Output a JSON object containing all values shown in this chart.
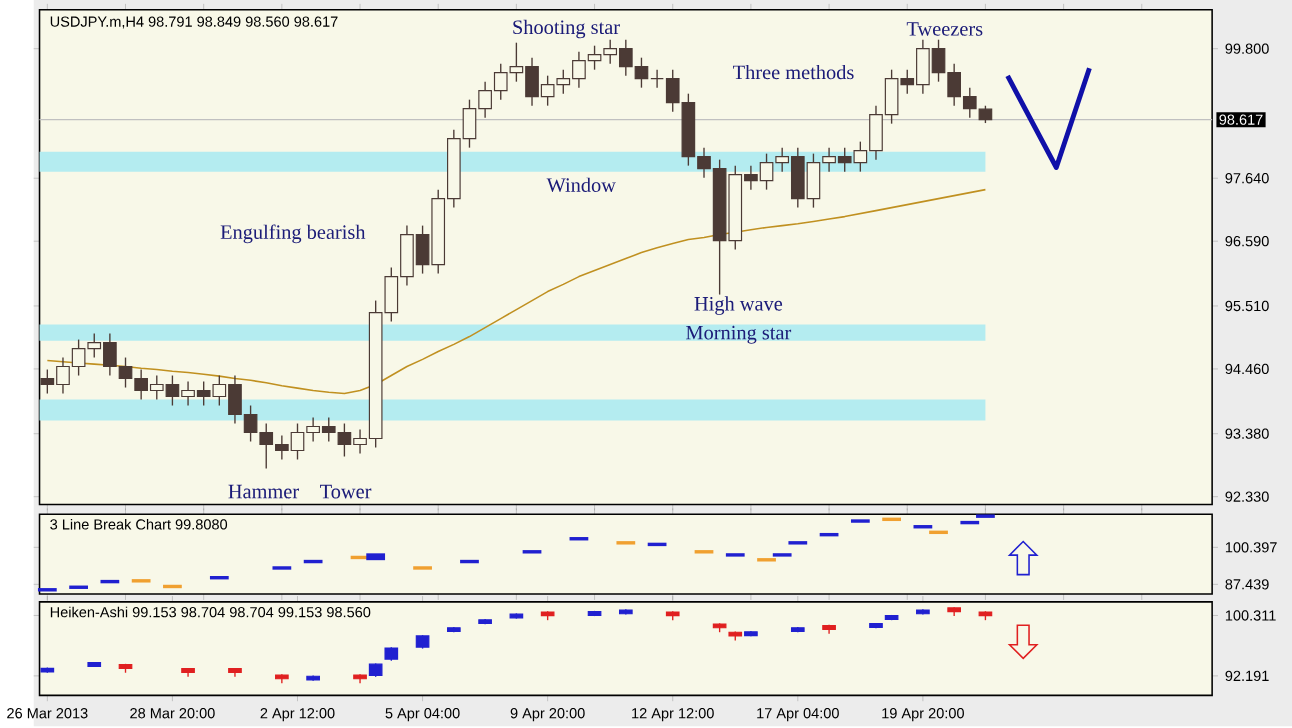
{
  "chart_data": [
    {
      "type": "candlestick",
      "title": "USDJPY.m,H4  98.791 98.849 98.560 98.617",
      "color": "#4b3a35",
      "categories": [
        null,
        null,
        null,
        null,
        null,
        null,
        null,
        null,
        null,
        null,
        null,
        null,
        null,
        null,
        null,
        null,
        null,
        null,
        null,
        null,
        null,
        null,
        null,
        null,
        null,
        null,
        null,
        null,
        null,
        null,
        null,
        null,
        null,
        null,
        null,
        null,
        null,
        null,
        null,
        null,
        null,
        null,
        null,
        null,
        null,
        null,
        null,
        null,
        null,
        null,
        null,
        null,
        null,
        null,
        null,
        null,
        null,
        null,
        null,
        null,
        null,
        null,
        null,
        null,
        null,
        null,
        null,
        null,
        null,
        null,
        null,
        null,
        null,
        null,
        null
      ],
      "ohlc": [
        [
          94.3,
          94.45,
          94.05,
          94.2
        ],
        [
          94.2,
          94.65,
          94.05,
          94.5
        ],
        [
          94.5,
          94.95,
          94.35,
          94.8
        ],
        [
          94.8,
          95.05,
          94.65,
          94.9
        ],
        [
          94.9,
          95.05,
          94.35,
          94.5
        ],
        [
          94.5,
          94.65,
          94.15,
          94.3
        ],
        [
          94.3,
          94.45,
          93.95,
          94.1
        ],
        [
          94.1,
          94.35,
          93.95,
          94.2
        ],
        [
          94.2,
          94.35,
          93.85,
          94.0
        ],
        [
          94.0,
          94.25,
          93.85,
          94.1
        ],
        [
          94.1,
          94.25,
          93.85,
          94.0
        ],
        [
          94.0,
          94.35,
          93.85,
          94.2
        ],
        [
          94.2,
          94.35,
          93.55,
          93.7
        ],
        [
          93.7,
          93.85,
          93.25,
          93.4
        ],
        [
          93.4,
          93.55,
          92.8,
          93.2
        ],
        [
          93.2,
          93.35,
          92.95,
          93.1
        ],
        [
          93.1,
          93.55,
          92.95,
          93.4
        ],
        [
          93.4,
          93.65,
          93.25,
          93.5
        ],
        [
          93.5,
          93.65,
          93.25,
          93.4
        ],
        [
          93.4,
          93.55,
          93.0,
          93.2
        ],
        [
          93.2,
          93.45,
          93.05,
          93.3
        ],
        [
          93.3,
          95.6,
          93.15,
          95.4
        ],
        [
          95.4,
          96.15,
          95.25,
          96.0
        ],
        [
          96.0,
          96.85,
          95.85,
          96.7
        ],
        [
          96.7,
          96.85,
          96.05,
          96.2
        ],
        [
          96.2,
          97.45,
          96.05,
          97.3
        ],
        [
          97.3,
          98.45,
          97.15,
          98.3
        ],
        [
          98.3,
          98.95,
          98.15,
          98.8
        ],
        [
          98.8,
          99.25,
          98.65,
          99.1
        ],
        [
          99.1,
          99.55,
          98.95,
          99.4
        ],
        [
          99.4,
          99.9,
          99.25,
          99.5
        ],
        [
          99.5,
          99.65,
          98.85,
          99.0
        ],
        [
          99.0,
          99.35,
          98.85,
          99.2
        ],
        [
          99.2,
          99.45,
          99.05,
          99.3
        ],
        [
          99.3,
          99.75,
          99.15,
          99.6
        ],
        [
          99.6,
          99.85,
          99.45,
          99.7
        ],
        [
          99.7,
          99.95,
          99.55,
          99.8
        ],
        [
          99.8,
          99.95,
          99.35,
          99.5
        ],
        [
          99.5,
          99.65,
          99.15,
          99.3
        ],
        [
          99.3,
          99.45,
          99.15,
          99.3
        ],
        [
          99.3,
          99.45,
          98.75,
          98.9
        ],
        [
          98.9,
          99.05,
          97.85,
          98.0
        ],
        [
          98.0,
          98.15,
          97.65,
          97.8
        ],
        [
          97.8,
          97.95,
          95.7,
          96.6
        ],
        [
          96.6,
          97.85,
          96.45,
          97.7
        ],
        [
          97.7,
          97.85,
          97.45,
          97.6
        ],
        [
          97.6,
          98.05,
          97.45,
          97.9
        ],
        [
          97.9,
          98.15,
          97.75,
          98.0
        ],
        [
          98.0,
          98.15,
          97.15,
          97.3
        ],
        [
          97.3,
          98.05,
          97.15,
          97.9
        ],
        [
          97.9,
          98.15,
          97.75,
          98.0
        ],
        [
          98.0,
          98.15,
          97.75,
          97.9
        ],
        [
          97.9,
          98.25,
          97.75,
          98.1
        ],
        [
          98.1,
          98.85,
          97.95,
          98.7
        ],
        [
          98.7,
          99.45,
          98.55,
          99.3
        ],
        [
          99.3,
          99.45,
          99.05,
          99.2
        ],
        [
          99.2,
          99.95,
          99.05,
          99.8
        ],
        [
          99.8,
          99.95,
          99.25,
          99.4
        ],
        [
          99.4,
          99.55,
          98.85,
          99.0
        ],
        [
          99.0,
          99.15,
          98.65,
          98.8
        ],
        [
          98.791,
          98.849,
          98.56,
          98.617
        ],
        null,
        null,
        null,
        null,
        null,
        null,
        null,
        null,
        null,
        null,
        null,
        null,
        null,
        null
      ],
      "series": [
        {
          "type": "line",
          "color": "#c09020",
          "values": [
            94.6,
            94.58,
            94.56,
            94.54,
            94.52,
            94.5,
            94.47,
            94.45,
            94.42,
            94.4,
            94.37,
            94.34,
            94.3,
            94.27,
            94.23,
            94.18,
            94.14,
            94.1,
            94.07,
            94.05,
            94.1,
            94.2,
            94.35,
            94.5,
            94.62,
            94.75,
            94.87,
            95.0,
            95.15,
            95.3,
            95.45,
            95.6,
            95.75,
            95.87,
            96.0,
            96.1,
            96.2,
            96.3,
            96.4,
            96.48,
            96.55,
            96.62,
            96.65,
            96.7,
            96.74,
            96.78,
            96.82,
            96.85,
            96.88,
            96.92,
            96.96,
            97.0,
            97.05,
            97.1,
            97.15,
            97.2,
            97.25,
            97.3,
            97.35,
            97.4,
            97.45,
            null,
            null,
            null,
            null,
            null,
            null,
            null,
            null,
            null,
            null,
            null,
            null,
            null,
            null
          ]
        }
      ],
      "ylim": [
        92.2,
        100.45
      ],
      "yticks": [
        {
          "value": 99.8,
          "label": "99.800"
        },
        {
          "value": 97.64,
          "label": "97.640"
        },
        {
          "value": 96.59,
          "label": "96.590"
        },
        {
          "value": 95.51,
          "label": "95.510"
        },
        {
          "value": 94.46,
          "label": "94.460"
        },
        {
          "value": 93.38,
          "label": "93.380"
        },
        {
          "value": 92.33,
          "label": "92.330"
        }
      ],
      "tick_labels": "y",
      "bands": [
        {
          "axis": "y",
          "from": 97.75,
          "to": 98.08,
          "color": "#b4ecf0"
        },
        {
          "axis": "y",
          "from": 94.93,
          "to": 95.2,
          "color": "#b4ecf0"
        },
        {
          "axis": "y",
          "from": 93.6,
          "to": 93.95,
          "color": "#b4ecf0"
        }
      ],
      "ref_lines": [
        {
          "axis": "y",
          "value": 98.617,
          "label": "98.617",
          "color": "#c0c0c0"
        }
      ],
      "annotations": [
        "Shooting star",
        "Three methods",
        "Tweezers",
        "Engulfing bearish",
        "Window",
        "High wave",
        "Morning star",
        "Hammer",
        "Tower"
      ]
    },
    {
      "type": "bar",
      "title": "3 Line Break Chart 99.8080",
      "categories": [
        null,
        null,
        null,
        null,
        null,
        null,
        null,
        null,
        null,
        null,
        null,
        null,
        null,
        null,
        null,
        null,
        null,
        null,
        null,
        null,
        null,
        null,
        null,
        null,
        null,
        null,
        null,
        null,
        null,
        null,
        null,
        null,
        null,
        null,
        null,
        null,
        null,
        null,
        null,
        null,
        null,
        null,
        null,
        null,
        null,
        null,
        null,
        null,
        null,
        null,
        null,
        null,
        null,
        null,
        null,
        null,
        null,
        null,
        null,
        null,
        null,
        null,
        null,
        null,
        null,
        null,
        null,
        null,
        null,
        null,
        null,
        null,
        null,
        null,
        null
      ],
      "base": [
        84.93,
        null,
        85.82,
        null,
        87.8,
        null,
        88.07,
        null,
        86.09,
        null,
        null,
        89.16,
        null,
        null,
        null,
        92.57,
        null,
        94.82,
        null,
        null,
        96.25,
        95.9,
        null,
        null,
        92.57,
        null,
        null,
        94.82,
        null,
        null,
        null,
        98.23,
        null,
        null,
        102.8,
        null,
        null,
        101.37,
        null,
        100.82,
        null,
        null,
        98.23,
        null,
        97.14,
        null,
        95.43,
        97.14,
        101.37,
        null,
        104.23,
        null,
        109.0,
        null,
        109.6,
        null,
        107.0,
        105.05,
        null,
        108.46,
        110.7,
        null,
        null,
        null,
        null,
        null,
        null,
        null,
        null,
        null,
        null,
        null,
        null,
        null,
        null
      ],
      "values": [
        1.2,
        null,
        1.2,
        null,
        1.2,
        null,
        1.2,
        null,
        1.2,
        null,
        null,
        1.2,
        null,
        null,
        null,
        1.2,
        null,
        1.2,
        null,
        null,
        1.2,
        2.4,
        null,
        null,
        1.2,
        null,
        null,
        1.2,
        null,
        null,
        null,
        1.2,
        null,
        null,
        1.2,
        null,
        null,
        1.2,
        null,
        1.2,
        null,
        null,
        1.2,
        null,
        1.2,
        null,
        1.2,
        1.2,
        1.2,
        null,
        1.2,
        null,
        1.2,
        null,
        1.2,
        null,
        1.2,
        1.2,
        null,
        1.2,
        1.2,
        null,
        null,
        null,
        null,
        null,
        null,
        null,
        null,
        null,
        null,
        null,
        null,
        null,
        null
      ],
      "colors": [
        "#2020d0",
        null,
        "#2020d0",
        null,
        "#2020d0",
        null,
        "#f0a030",
        null,
        "#f0a030",
        null,
        null,
        "#2020d0",
        null,
        null,
        null,
        "#2020d0",
        null,
        "#2020d0",
        null,
        null,
        "#f0a030",
        "#2020d0",
        null,
        null,
        "#f0a030",
        null,
        null,
        "#2020d0",
        null,
        null,
        null,
        "#2020d0",
        null,
        null,
        "#2020d0",
        null,
        null,
        "#f0a030",
        null,
        "#2020d0",
        null,
        null,
        "#f0a030",
        null,
        "#2020d0",
        null,
        "#f0a030",
        "#2020d0",
        "#2020d0",
        null,
        "#2020d0",
        null,
        "#2020d0",
        null,
        "#f0a030",
        null,
        "#2020d0",
        "#f0a030",
        null,
        "#2020d0",
        "#2020d0",
        null,
        null,
        null,
        null,
        null,
        null,
        null,
        null,
        null,
        null,
        null,
        null,
        null,
        null
      ],
      "ylim": [
        84.03,
        111.99
      ],
      "yticks": [
        100.397,
        87.439
      ],
      "tick_labels": "y"
    },
    {
      "type": "candlestick",
      "title": "Heiken-Ashi 99.153 98.704 98.704 99.153 98.560",
      "categories": [
        "26 Mar 2013",
        null,
        null,
        null,
        null,
        null,
        null,
        null,
        "28 Mar 20:00",
        null,
        null,
        null,
        null,
        null,
        null,
        null,
        "2 Apr 12:00",
        null,
        null,
        null,
        null,
        null,
        null,
        null,
        "5 Apr 04:00",
        null,
        null,
        null,
        null,
        null,
        null,
        null,
        "9 Apr 20:00",
        null,
        null,
        null,
        null,
        null,
        null,
        null,
        "12 Apr 12:00",
        null,
        null,
        null,
        null,
        null,
        null,
        null,
        "17 Apr 04:00",
        null,
        null,
        null,
        null,
        null,
        null,
        null,
        "19 Apr 20:00",
        null,
        null,
        null,
        null,
        null,
        null,
        null,
        null,
        null,
        null,
        null,
        null,
        null,
        null,
        null,
        null,
        null,
        null
      ],
      "ohlc": [
        [
          92.71,
          93.31,
          92.61,
          93.21
        ],
        null,
        null,
        [
          93.47,
          94.07,
          93.37,
          93.97
        ],
        null,
        [
          93.71,
          93.81,
          92.61,
          93.21
        ],
        null,
        null,
        null,
        [
          93.16,
          93.26,
          92.06,
          92.66
        ],
        null,
        null,
        [
          93.16,
          93.26,
          92.06,
          92.66
        ],
        null,
        null,
        [
          92.3,
          92.4,
          91.2,
          91.8
        ],
        null,
        [
          91.64,
          92.24,
          91.54,
          92.14
        ],
        null,
        null,
        [
          92.3,
          92.4,
          91.2,
          91.8
        ],
        [
          92.26,
          93.86,
          92.06,
          93.76
        ],
        [
          94.44,
          96.04,
          94.24,
          95.94
        ],
        null,
        [
          96.06,
          97.66,
          95.86,
          97.56
        ],
        null,
        [
          98.16,
          98.76,
          98.06,
          98.66
        ],
        null,
        [
          99.23,
          99.83,
          99.13,
          99.73
        ],
        null,
        [
          99.99,
          100.59,
          99.89,
          100.49
        ],
        null,
        [
          100.78,
          100.88,
          99.68,
          100.28
        ],
        null,
        null,
        [
          100.33,
          100.93,
          100.23,
          100.83
        ],
        null,
        [
          100.54,
          101.14,
          100.44,
          101.04
        ],
        null,
        null,
        [
          100.78,
          100.88,
          99.68,
          100.28
        ],
        null,
        null,
        [
          99.16,
          99.26,
          98.06,
          98.66
        ],
        [
          98.06,
          98.16,
          96.96,
          97.56
        ],
        [
          97.61,
          98.21,
          97.51,
          98.11
        ],
        null,
        null,
        [
          98.16,
          98.76,
          98.06,
          98.66
        ],
        null,
        [
          98.95,
          99.05,
          97.85,
          98.45
        ],
        null,
        null,
        [
          98.71,
          99.31,
          98.61,
          99.21
        ],
        [
          99.78,
          100.38,
          99.68,
          100.28
        ],
        null,
        [
          100.54,
          101.14,
          100.44,
          101.04
        ],
        null,
        [
          101.33,
          101.43,
          100.23,
          100.83
        ],
        null,
        [
          100.78,
          100.88,
          99.68,
          100.28
        ],
        null,
        null,
        null,
        null,
        null,
        null,
        null,
        null,
        null,
        null,
        null,
        null,
        null,
        null
      ],
      "colors": [
        "#2020d0",
        null,
        null,
        "#2020d0",
        null,
        "#e02020",
        null,
        null,
        null,
        "#e02020",
        null,
        null,
        "#e02020",
        null,
        null,
        "#e02020",
        null,
        "#2020d0",
        null,
        null,
        "#e02020",
        "#2020d0",
        "#2020d0",
        null,
        "#2020d0",
        null,
        "#2020d0",
        null,
        "#2020d0",
        null,
        "#2020d0",
        null,
        "#e02020",
        null,
        null,
        "#2020d0",
        null,
        "#2020d0",
        null,
        null,
        "#e02020",
        null,
        null,
        "#e02020",
        "#e02020",
        "#2020d0",
        null,
        null,
        "#2020d0",
        null,
        "#e02020",
        null,
        null,
        "#2020d0",
        "#2020d0",
        null,
        "#2020d0",
        null,
        "#e02020",
        null,
        "#e02020",
        null,
        null,
        null,
        null,
        null,
        null,
        null,
        null,
        null,
        null,
        null,
        null,
        null,
        null
      ],
      "ylim": [
        89.57,
        102.14
      ],
      "yticks": [
        100.311,
        92.191
      ]
    }
  ]
}
